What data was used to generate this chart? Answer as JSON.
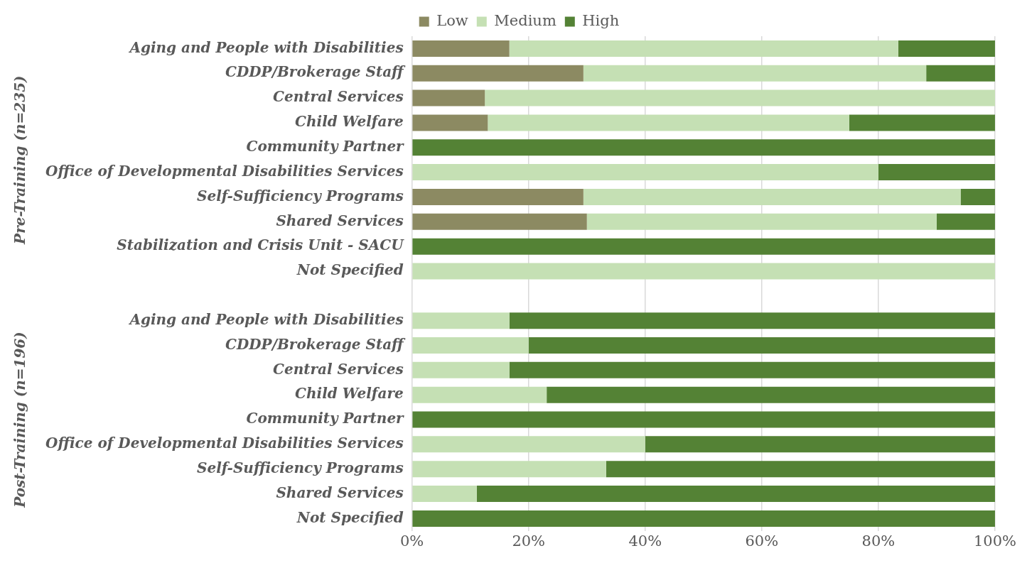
{
  "chart_data": {
    "type": "bar",
    "orientation": "horizontal",
    "stacked": true,
    "categories": [
      "Aging and People with Disabilities",
      "CDDP/Brokerage Staff",
      "Central Services",
      "Child Welfare",
      "Community Partner",
      "Office of Developmental Disabilities Services",
      "Self-Sufficiency Programs",
      "Shared Services",
      "Stabilization and Crisis Unit - SACU",
      "Not Specified",
      null,
      "Aging and People with Disabilities",
      "CDDP/Brokerage Staff",
      "Central Services",
      "Child Welfare",
      "Community Partner",
      "Office of Developmental Disabilities Services",
      "Self-Sufficiency Programs",
      "Shared Services",
      "Not Specified"
    ],
    "series": [
      {
        "name": "Low",
        "color": "#8c8a62",
        "values": [
          16.7,
          29.4,
          12.5,
          13,
          0,
          0,
          29.4,
          30,
          0,
          0,
          null,
          0,
          0,
          0,
          0,
          0,
          0,
          0,
          0,
          0
        ]
      },
      {
        "name": "Medium",
        "color": "#c5e0b4",
        "values": [
          66.7,
          58.8,
          87.5,
          62,
          0,
          80,
          64.7,
          60,
          0,
          100,
          null,
          16.7,
          20,
          16.7,
          23.1,
          0,
          40,
          33.3,
          11.1,
          0
        ]
      },
      {
        "name": "High",
        "color": "#548235",
        "values": [
          16.6,
          11.8,
          0,
          25,
          100,
          20,
          5.9,
          10,
          100,
          0,
          null,
          83.3,
          80,
          83.3,
          76.9,
          100,
          60,
          66.7,
          88.9,
          100
        ]
      }
    ],
    "xlim": [
      0,
      100
    ],
    "xticks": [
      {
        "value": 0,
        "label": "0%"
      },
      {
        "value": 20,
        "label": "20%"
      },
      {
        "value": 40,
        "label": "40%"
      },
      {
        "value": 60,
        "label": "60%"
      },
      {
        "value": 80,
        "label": "80%"
      },
      {
        "value": 100,
        "label": "100%"
      }
    ],
    "grid": "x",
    "legend": "top",
    "annotations": [
      "Pre-Training (n=235)",
      "Post-Training (n=196)"
    ]
  }
}
